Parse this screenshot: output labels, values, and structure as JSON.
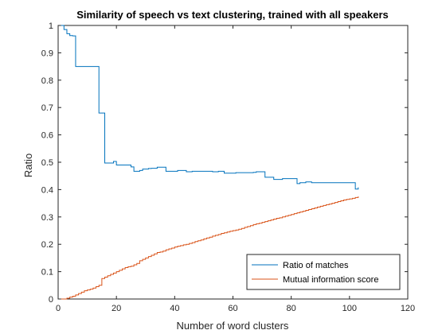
{
  "chart_data": {
    "type": "line",
    "title": "Similarity of speech vs text clustering, trained with all speakers",
    "xlabel": "Number of word clusters",
    "ylabel": "Ratio",
    "xlim": [
      0,
      120
    ],
    "ylim": [
      0,
      1
    ],
    "xticks": [
      "0",
      "20",
      "40",
      "60",
      "80",
      "100",
      "120"
    ],
    "yticks": [
      "0",
      "0.1",
      "0.2",
      "0.3",
      "0.4",
      "0.5",
      "0.6",
      "0.7",
      "0.8",
      "0.9",
      "1"
    ],
    "grid": false,
    "legend_position": "bottom-right",
    "series": [
      {
        "name": "Ratio of matches",
        "color": "#0072BD",
        "x": [
          1,
          2,
          3,
          4,
          5,
          6,
          7,
          8,
          9,
          10,
          11,
          12,
          13,
          14,
          15,
          16,
          17,
          18,
          19,
          20,
          21,
          22,
          23,
          24,
          25,
          26,
          27,
          28,
          29,
          30,
          31,
          32,
          33,
          34,
          35,
          36,
          37,
          38,
          39,
          40,
          41,
          42,
          43,
          44,
          45,
          46,
          47,
          48,
          49,
          50,
          51,
          52,
          53,
          54,
          55,
          56,
          57,
          58,
          59,
          60,
          61,
          62,
          63,
          64,
          65,
          66,
          67,
          68,
          69,
          70,
          71,
          72,
          73,
          74,
          75,
          76,
          77,
          78,
          79,
          80,
          81,
          82,
          83,
          84,
          85,
          86,
          87,
          88,
          89,
          90,
          91,
          92,
          93,
          94,
          95,
          96,
          97,
          98,
          99,
          100,
          101,
          102,
          103
        ],
        "y": [
          1.0,
          0.985,
          0.97,
          0.963,
          0.962,
          0.85,
          0.85,
          0.85,
          0.85,
          0.85,
          0.85,
          0.85,
          0.85,
          0.68,
          0.68,
          0.497,
          0.497,
          0.497,
          0.503,
          0.49,
          0.49,
          0.49,
          0.49,
          0.49,
          0.483,
          0.467,
          0.467,
          0.47,
          0.475,
          0.475,
          0.477,
          0.478,
          0.478,
          0.482,
          0.482,
          0.482,
          0.467,
          0.467,
          0.467,
          0.467,
          0.47,
          0.47,
          0.47,
          0.465,
          0.465,
          0.467,
          0.467,
          0.467,
          0.467,
          0.467,
          0.467,
          0.467,
          0.465,
          0.465,
          0.467,
          0.467,
          0.46,
          0.46,
          0.46,
          0.46,
          0.462,
          0.462,
          0.462,
          0.462,
          0.462,
          0.462,
          0.463,
          0.465,
          0.465,
          0.465,
          0.445,
          0.445,
          0.445,
          0.437,
          0.437,
          0.437,
          0.44,
          0.44,
          0.44,
          0.44,
          0.44,
          0.422,
          0.425,
          0.425,
          0.428,
          0.428,
          0.425,
          0.425,
          0.425,
          0.425,
          0.425,
          0.425,
          0.425,
          0.425,
          0.425,
          0.425,
          0.425,
          0.425,
          0.425,
          0.425,
          0.425,
          0.402,
          0.408
        ]
      },
      {
        "name": "Mutual information score",
        "color": "#D95319",
        "x": [
          1,
          2,
          3,
          4,
          5,
          6,
          7,
          8,
          9,
          10,
          11,
          12,
          13,
          14,
          15,
          16,
          17,
          18,
          19,
          20,
          21,
          22,
          23,
          24,
          25,
          26,
          27,
          28,
          29,
          30,
          31,
          32,
          33,
          34,
          35,
          36,
          37,
          38,
          39,
          40,
          41,
          42,
          43,
          44,
          45,
          46,
          47,
          48,
          49,
          50,
          51,
          52,
          53,
          54,
          55,
          56,
          57,
          58,
          59,
          60,
          61,
          62,
          63,
          64,
          65,
          66,
          67,
          68,
          69,
          70,
          71,
          72,
          73,
          74,
          75,
          76,
          77,
          78,
          79,
          80,
          81,
          82,
          83,
          84,
          85,
          86,
          87,
          88,
          89,
          90,
          91,
          92,
          93,
          94,
          95,
          96,
          97,
          98,
          99,
          100,
          101,
          102,
          103
        ],
        "y": [
          0.0,
          0.0,
          0.003,
          0.007,
          0.01,
          0.015,
          0.02,
          0.025,
          0.03,
          0.033,
          0.036,
          0.04,
          0.045,
          0.05,
          0.075,
          0.08,
          0.085,
          0.09,
          0.095,
          0.1,
          0.105,
          0.11,
          0.115,
          0.118,
          0.12,
          0.125,
          0.13,
          0.14,
          0.145,
          0.15,
          0.155,
          0.16,
          0.165,
          0.17,
          0.172,
          0.175,
          0.18,
          0.183,
          0.186,
          0.19,
          0.193,
          0.195,
          0.198,
          0.2,
          0.203,
          0.206,
          0.21,
          0.213,
          0.216,
          0.22,
          0.223,
          0.226,
          0.23,
          0.233,
          0.236,
          0.24,
          0.242,
          0.245,
          0.248,
          0.25,
          0.252,
          0.255,
          0.258,
          0.262,
          0.265,
          0.268,
          0.272,
          0.275,
          0.277,
          0.28,
          0.283,
          0.286,
          0.289,
          0.292,
          0.295,
          0.297,
          0.3,
          0.303,
          0.306,
          0.309,
          0.312,
          0.315,
          0.318,
          0.321,
          0.324,
          0.327,
          0.33,
          0.333,
          0.336,
          0.339,
          0.342,
          0.345,
          0.347,
          0.35,
          0.353,
          0.356,
          0.359,
          0.362,
          0.364,
          0.366,
          0.368,
          0.371,
          0.375
        ]
      }
    ]
  }
}
